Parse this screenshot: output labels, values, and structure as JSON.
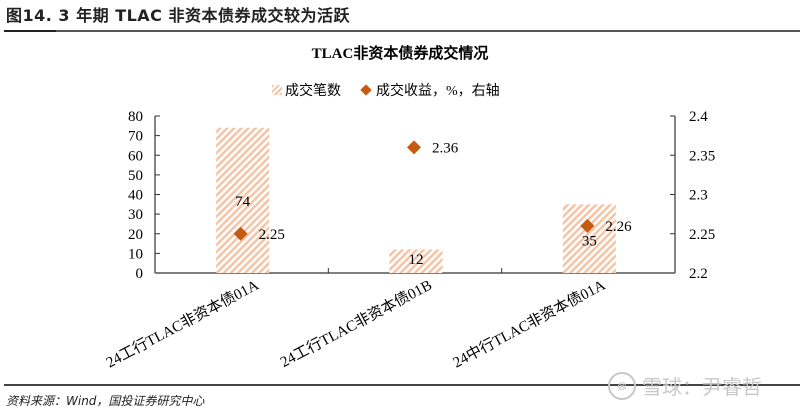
{
  "figure": {
    "title": "图14. 3 年期 TLAC 非资本债券成交较为活跃",
    "source": "资料来源：Wind，国投证券研究中心",
    "watermark": "雪球：尹睿哲"
  },
  "chart_data": {
    "type": "bar",
    "title": "TLAC非资本债券成交情况",
    "categories": [
      "24工行TLAC非资本债01A",
      "24工行TLAC非资本债01B",
      "24中行TLAC非资本债01A"
    ],
    "series": [
      {
        "name": "成交笔数",
        "type": "bar",
        "axis": "left",
        "values": [
          74,
          12,
          35
        ],
        "labels": [
          "74",
          "12",
          "35"
        ],
        "color": "#f6c4a4",
        "pattern": "hatch"
      },
      {
        "name": "成交收益，%，右轴",
        "type": "scatter",
        "axis": "right",
        "values": [
          2.25,
          2.36,
          2.26
        ],
        "labels": [
          "2.25",
          "2.36",
          "2.26"
        ],
        "color": "#c55a11",
        "marker": "diamond"
      }
    ],
    "left_axis": {
      "ylim": [
        0,
        80
      ],
      "ticks": [
        "0",
        "10",
        "20",
        "30",
        "40",
        "50",
        "60",
        "70",
        "80"
      ]
    },
    "right_axis": {
      "ylim": [
        2.2,
        2.4
      ],
      "ticks": [
        "2.2",
        "2.25",
        "2.3",
        "2.35",
        "2.4"
      ]
    },
    "xlabel": "",
    "ylabel": "",
    "grid": false,
    "legend_position": "top"
  }
}
